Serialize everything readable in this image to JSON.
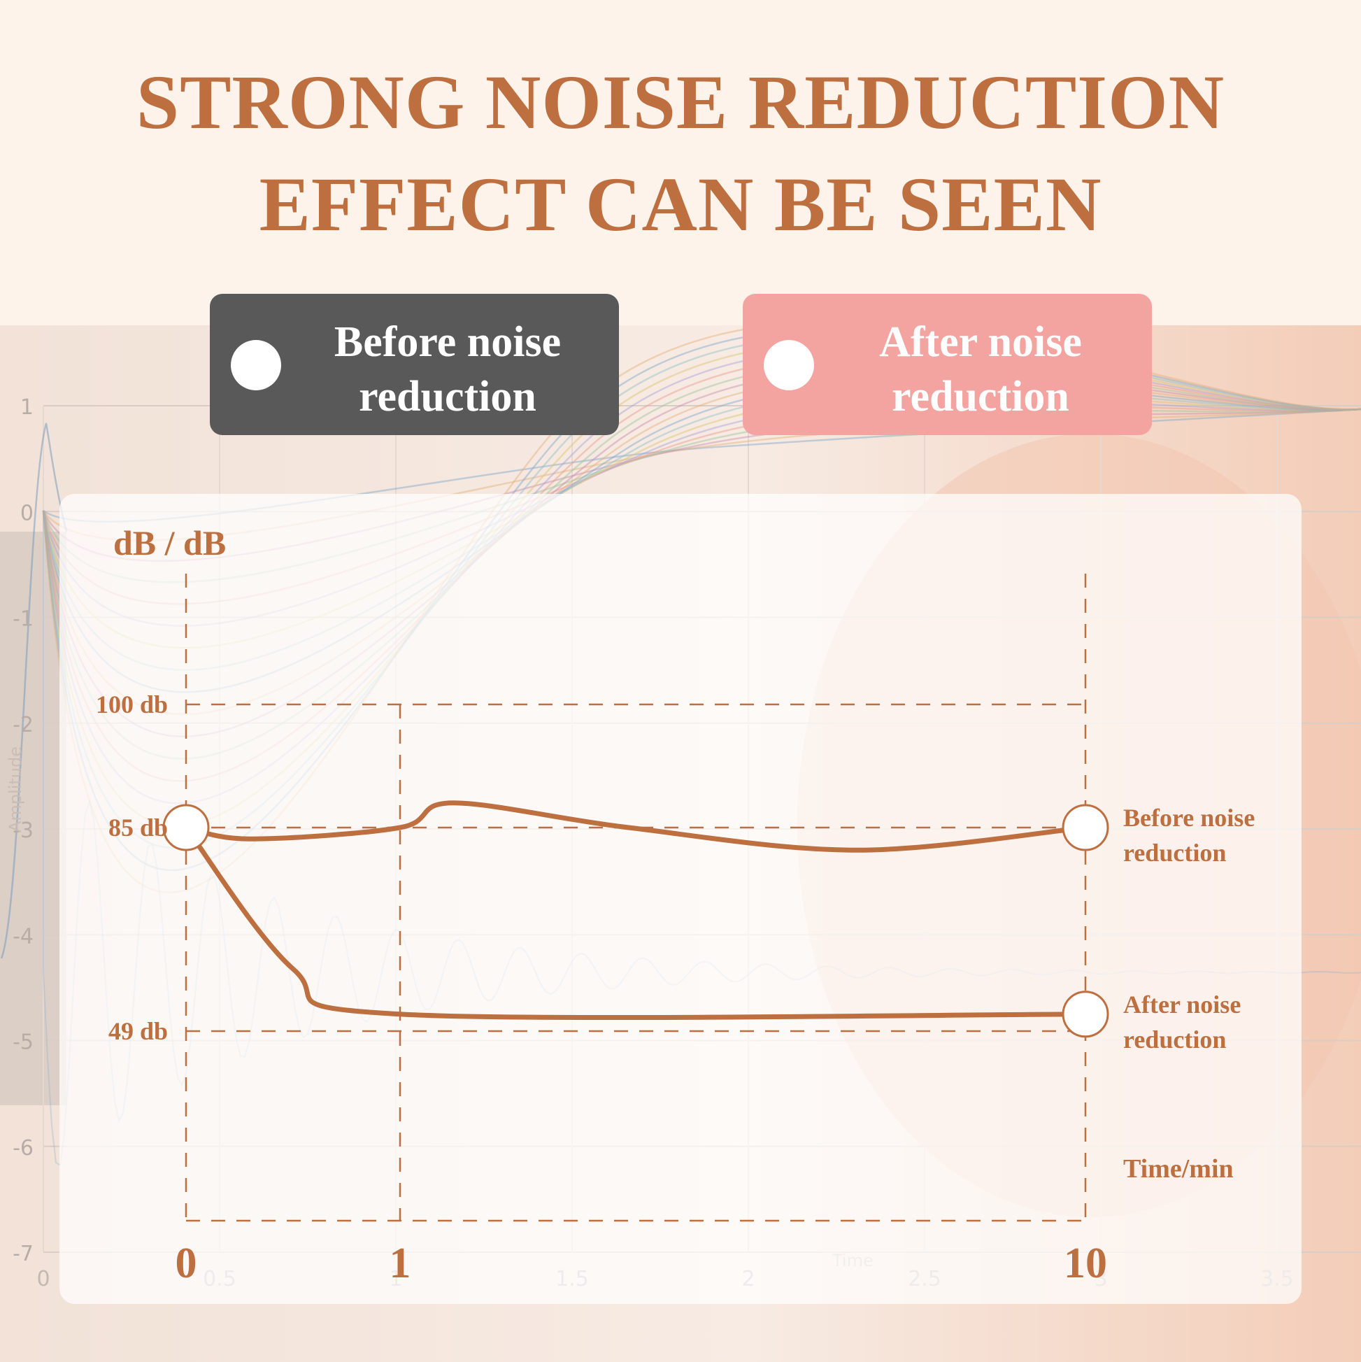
{
  "title": {
    "line1": "STRONG NOISE REDUCTION",
    "line2": "EFFECT CAN BE SEEN"
  },
  "legend": [
    {
      "line1": "Before noise",
      "line2": "reduction",
      "color": "#595959"
    },
    {
      "line1": "After noise",
      "line2": "reduction",
      "color": "#f3a3a0"
    }
  ],
  "background_plot": {
    "y_ticks": [
      "1",
      "0",
      "-1",
      "-2",
      "-3",
      "-4",
      "-5",
      "-6",
      "-7"
    ],
    "x_ticks": [
      "0",
      "0.5",
      "1",
      "1.5",
      "2",
      "2.5",
      "3",
      "3.5"
    ],
    "ylabel": "Amplitude",
    "xlabel": "Time"
  },
  "chart_data": {
    "type": "line",
    "ylabel": "dB / dB",
    "xlabel": "Time/min",
    "x_ticks": [
      "0",
      "1",
      "10"
    ],
    "y_ticks": [
      {
        "label": "100 db",
        "value": 100
      },
      {
        "label": "85 db",
        "value": 85
      },
      {
        "label": "49 db",
        "value": 49
      }
    ],
    "series": [
      {
        "name_line1": "Before noise",
        "name_line2": "reduction",
        "points": [
          {
            "x": "0",
            "y": 85
          },
          {
            "x": "0.3",
            "y": 83
          },
          {
            "x": "1",
            "y": 85
          },
          {
            "x": "1.7",
            "y": 88
          },
          {
            "x": "4",
            "y": 85
          },
          {
            "x": "7",
            "y": 81
          },
          {
            "x": "10",
            "y": 85
          }
        ]
      },
      {
        "name_line1": "After noise",
        "name_line2": "reduction",
        "points": [
          {
            "x": "0",
            "y": 85
          },
          {
            "x": "0.5",
            "y": 60
          },
          {
            "x": "1",
            "y": 52
          },
          {
            "x": "10",
            "y": 52
          }
        ]
      }
    ],
    "line_color": "#bd6f3f",
    "grid": "dashed"
  }
}
